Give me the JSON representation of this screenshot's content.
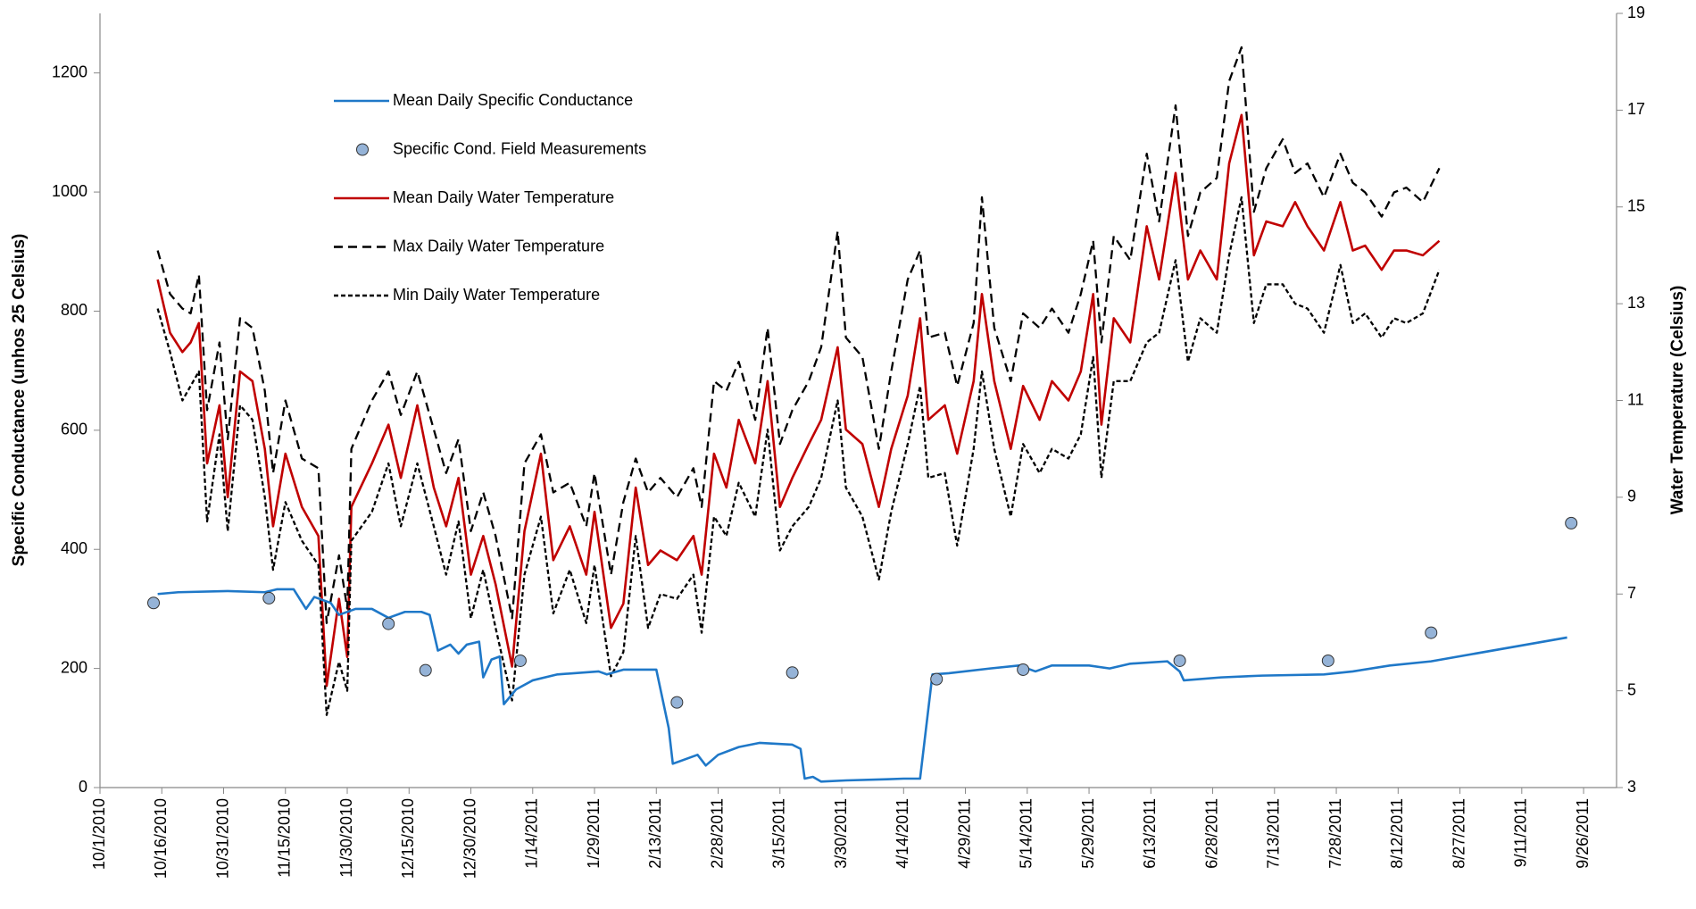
{
  "chart_data": {
    "type": "line",
    "y_label": "Specific Conductance (unhos 25 Celsius)",
    "y2_label": "Water Temperature (Celsius)",
    "xlim": [
      "2010-10-01",
      "2011-10-04"
    ],
    "xticks": [
      {
        "value": "2010-10-01",
        "label": "10/1/2010"
      },
      {
        "value": "2010-10-16",
        "label": "10/16/2010"
      },
      {
        "value": "2010-10-31",
        "label": "10/31/2010"
      },
      {
        "value": "2010-11-15",
        "label": "11/15/2010"
      },
      {
        "value": "2010-11-30",
        "label": "11/30/2010"
      },
      {
        "value": "2010-12-15",
        "label": "12/15/2010"
      },
      {
        "value": "2010-12-30",
        "label": "12/30/2010"
      },
      {
        "value": "2011-01-14",
        "label": "1/14/2011"
      },
      {
        "value": "2011-01-29",
        "label": "1/29/2011"
      },
      {
        "value": "2011-02-13",
        "label": "2/13/2011"
      },
      {
        "value": "2011-02-28",
        "label": "2/28/2011"
      },
      {
        "value": "2011-03-15",
        "label": "3/15/2011"
      },
      {
        "value": "2011-03-30",
        "label": "3/30/2011"
      },
      {
        "value": "2011-04-14",
        "label": "4/14/2011"
      },
      {
        "value": "2011-04-29",
        "label": "4/29/2011"
      },
      {
        "value": "2011-05-14",
        "label": "5/14/2011"
      },
      {
        "value": "2011-05-29",
        "label": "5/29/2011"
      },
      {
        "value": "2011-06-13",
        "label": "6/13/2011"
      },
      {
        "value": "2011-06-28",
        "label": "6/28/2011"
      },
      {
        "value": "2011-07-13",
        "label": "7/13/2011"
      },
      {
        "value": "2011-07-28",
        "label": "7/28/2011"
      },
      {
        "value": "2011-08-12",
        "label": "8/12/2011"
      },
      {
        "value": "2011-08-27",
        "label": "8/27/2011"
      },
      {
        "value": "2011-09-11",
        "label": "9/11/2011"
      },
      {
        "value": "2011-09-26",
        "label": "9/26/2011"
      }
    ],
    "ylim": [
      0,
      1300
    ],
    "yticks": [
      0,
      200,
      400,
      600,
      800,
      1000,
      1200
    ],
    "y2lim": [
      3,
      19
    ],
    "y2ticks": [
      3,
      5,
      7,
      9,
      11,
      13,
      15,
      17,
      19
    ],
    "grid": false,
    "legend": "upper left",
    "series": [
      {
        "name": "Mean Daily Specific Conductance",
        "color": "#1f78c8",
        "style": "solid",
        "x": [
          "2010-10-15",
          "2010-10-20",
          "2010-11-01",
          "2010-11-10",
          "2010-11-13",
          "2010-11-17",
          "2010-11-20",
          "2010-11-22",
          "2010-11-26",
          "2010-11-28",
          "2010-12-02",
          "2010-12-06",
          "2010-12-10",
          "2010-12-14",
          "2010-12-18",
          "2010-12-20",
          "2010-12-22",
          "2010-12-25",
          "2010-12-27",
          "2010-12-29",
          "2011-01-01",
          "2011-01-02",
          "2011-01-04",
          "2011-01-06",
          "2011-01-07",
          "2011-01-10",
          "2011-01-14",
          "2011-01-20",
          "2011-01-30",
          "2011-02-01",
          "2011-02-05",
          "2011-02-13",
          "2011-02-16",
          "2011-02-17",
          "2011-02-23",
          "2011-02-25",
          "2011-02-28",
          "2011-03-05",
          "2011-03-10",
          "2011-03-18",
          "2011-03-20",
          "2011-03-21",
          "2011-03-23",
          "2011-03-25",
          "2011-03-31",
          "2011-04-10",
          "2011-04-14",
          "2011-04-18",
          "2011-04-21",
          "2011-04-25",
          "2011-05-05",
          "2011-05-12",
          "2011-05-16",
          "2011-05-20",
          "2011-05-29",
          "2011-06-03",
          "2011-06-08",
          "2011-06-17",
          "2011-06-20",
          "2011-06-21",
          "2011-06-30",
          "2011-07-10",
          "2011-07-25",
          "2011-08-01",
          "2011-08-10",
          "2011-08-20",
          "2011-09-22"
        ],
        "values": [
          325,
          328,
          330,
          328,
          333,
          333,
          300,
          320,
          310,
          290,
          300,
          300,
          285,
          295,
          295,
          290,
          230,
          240,
          225,
          240,
          245,
          185,
          215,
          220,
          140,
          165,
          180,
          190,
          195,
          190,
          198,
          198,
          100,
          40,
          55,
          37,
          55,
          68,
          75,
          72,
          65,
          15,
          18,
          10,
          12,
          14,
          15,
          15,
          190,
          192,
          200,
          205,
          195,
          205,
          205,
          200,
          208,
          212,
          195,
          180,
          185,
          188,
          190,
          195,
          205,
          212,
          252
        ]
      },
      {
        "name": "Specific Cond. Field Measurements",
        "color": "#95b3d7",
        "style": "marker",
        "x": [
          "2010-10-14",
          "2010-11-11",
          "2010-12-10",
          "2010-12-19",
          "2011-01-11",
          "2011-02-18",
          "2011-03-18",
          "2011-04-22",
          "2011-05-13",
          "2011-06-20",
          "2011-07-26",
          "2011-08-20",
          "2011-09-23"
        ],
        "values": [
          310,
          318,
          275,
          197,
          213,
          143,
          193,
          182,
          198,
          213,
          213,
          260,
          444
        ]
      },
      {
        "name": "Mean Daily Water Temperature",
        "color": "#c00000",
        "style": "solid",
        "axis": "y2",
        "x": [
          "2010-10-15",
          "2010-10-18",
          "2010-10-21",
          "2010-10-23",
          "2010-10-25",
          "2010-10-27",
          "2010-10-30",
          "2010-11-01",
          "2010-11-04",
          "2010-11-07",
          "2010-11-10",
          "2010-11-12",
          "2010-11-15",
          "2010-11-19",
          "2010-11-23",
          "2010-11-25",
          "2010-11-28",
          "2010-11-30",
          "2010-12-01",
          "2010-12-06",
          "2010-12-10",
          "2010-12-13",
          "2010-12-17",
          "2010-12-21",
          "2010-12-24",
          "2010-12-27",
          "2010-12-30",
          "2011-01-02",
          "2011-01-05",
          "2011-01-09",
          "2011-01-12",
          "2011-01-16",
          "2011-01-19",
          "2011-01-23",
          "2011-01-27",
          "2011-01-29",
          "2011-02-02",
          "2011-02-05",
          "2011-02-08",
          "2011-02-11",
          "2011-02-14",
          "2011-02-18",
          "2011-02-22",
          "2011-02-24",
          "2011-02-27",
          "2011-03-02",
          "2011-03-05",
          "2011-03-09",
          "2011-03-12",
          "2011-03-15",
          "2011-03-18",
          "2011-03-22",
          "2011-03-25",
          "2011-03-29",
          "2011-03-31",
          "2011-04-04",
          "2011-04-08",
          "2011-04-11",
          "2011-04-15",
          "2011-04-18",
          "2011-04-20",
          "2011-04-24",
          "2011-04-27",
          "2011-05-01",
          "2011-05-03",
          "2011-05-06",
          "2011-05-10",
          "2011-05-13",
          "2011-05-17",
          "2011-05-20",
          "2011-05-24",
          "2011-05-27",
          "2011-05-30",
          "2011-06-01",
          "2011-06-04",
          "2011-06-08",
          "2011-06-12",
          "2011-06-15",
          "2011-06-19",
          "2011-06-22",
          "2011-06-25",
          "2011-06-29",
          "2011-07-02",
          "2011-07-05",
          "2011-07-08",
          "2011-07-11",
          "2011-07-15",
          "2011-07-18",
          "2011-07-21",
          "2011-07-25",
          "2011-07-29",
          "2011-08-01",
          "2011-08-04",
          "2011-08-08",
          "2011-08-11",
          "2011-08-14",
          "2011-08-18",
          "2011-08-22"
        ],
        "values": [
          13.5,
          12.4,
          12.0,
          12.2,
          12.6,
          9.7,
          10.9,
          9.0,
          11.6,
          11.4,
          10.0,
          8.4,
          9.9,
          8.8,
          8.2,
          5.1,
          6.9,
          5.7,
          8.8,
          9.7,
          10.5,
          9.4,
          10.9,
          9.2,
          8.4,
          9.4,
          7.4,
          8.2,
          7.2,
          5.5,
          8.3,
          9.9,
          7.7,
          8.4,
          7.4,
          8.7,
          6.3,
          6.8,
          9.2,
          7.6,
          7.9,
          7.7,
          8.2,
          7.4,
          9.9,
          9.2,
          10.6,
          9.7,
          11.4,
          8.8,
          9.4,
          10.1,
          10.6,
          12.1,
          10.4,
          10.1,
          8.8,
          10.0,
          11.1,
          12.7,
          10.6,
          10.9,
          9.9,
          11.4,
          13.2,
          11.4,
          10.0,
          11.3,
          10.6,
          11.4,
          11.0,
          11.6,
          13.2,
          10.5,
          12.7,
          12.2,
          14.6,
          13.5,
          15.7,
          13.5,
          14.1,
          13.5,
          15.9,
          16.9,
          14.0,
          14.7,
          14.6,
          15.1,
          14.6,
          14.1,
          15.1,
          14.1,
          14.2,
          13.7,
          14.1,
          14.1,
          14.0,
          14.3
        ]
      },
      {
        "name": "Max Daily Water Temperature",
        "color": "#000000",
        "style": "dashed",
        "axis": "y2",
        "x": [
          "2010-10-15",
          "2010-10-18",
          "2010-10-21",
          "2010-10-23",
          "2010-10-25",
          "2010-10-27",
          "2010-10-30",
          "2010-11-01",
          "2010-11-04",
          "2010-11-07",
          "2010-11-10",
          "2010-11-12",
          "2010-11-15",
          "2010-11-19",
          "2010-11-23",
          "2010-11-25",
          "2010-11-28",
          "2010-11-30",
          "2010-12-01",
          "2010-12-06",
          "2010-12-10",
          "2010-12-13",
          "2010-12-17",
          "2010-12-21",
          "2010-12-24",
          "2010-12-27",
          "2010-12-30",
          "2011-01-02",
          "2011-01-05",
          "2011-01-09",
          "2011-01-12",
          "2011-01-16",
          "2011-01-19",
          "2011-01-23",
          "2011-01-27",
          "2011-01-29",
          "2011-02-02",
          "2011-02-05",
          "2011-02-08",
          "2011-02-11",
          "2011-02-14",
          "2011-02-18",
          "2011-02-22",
          "2011-02-24",
          "2011-02-27",
          "2011-03-02",
          "2011-03-05",
          "2011-03-09",
          "2011-03-12",
          "2011-03-15",
          "2011-03-18",
          "2011-03-22",
          "2011-03-25",
          "2011-03-29",
          "2011-03-31",
          "2011-04-04",
          "2011-04-08",
          "2011-04-11",
          "2011-04-15",
          "2011-04-18",
          "2011-04-20",
          "2011-04-24",
          "2011-04-27",
          "2011-05-01",
          "2011-05-03",
          "2011-05-06",
          "2011-05-10",
          "2011-05-13",
          "2011-05-17",
          "2011-05-20",
          "2011-05-24",
          "2011-05-27",
          "2011-05-30",
          "2011-06-01",
          "2011-06-04",
          "2011-06-08",
          "2011-06-12",
          "2011-06-15",
          "2011-06-19",
          "2011-06-22",
          "2011-06-25",
          "2011-06-29",
          "2011-07-02",
          "2011-07-05",
          "2011-07-08",
          "2011-07-11",
          "2011-07-15",
          "2011-07-18",
          "2011-07-21",
          "2011-07-25",
          "2011-07-29",
          "2011-08-01",
          "2011-08-04",
          "2011-08-08",
          "2011-08-11",
          "2011-08-14",
          "2011-08-18",
          "2011-08-22"
        ],
        "values": [
          14.1,
          13.2,
          12.9,
          12.8,
          13.6,
          10.8,
          12.2,
          10.2,
          12.7,
          12.5,
          11.2,
          9.5,
          11.0,
          9.8,
          9.6,
          6.4,
          7.8,
          6.7,
          10.0,
          11.0,
          11.6,
          10.7,
          11.6,
          10.4,
          9.5,
          10.2,
          8.3,
          9.1,
          8.2,
          6.5,
          9.7,
          10.3,
          9.1,
          9.3,
          8.4,
          9.5,
          7.4,
          8.9,
          9.8,
          9.1,
          9.4,
          9.0,
          9.6,
          8.8,
          11.4,
          11.2,
          11.8,
          10.6,
          12.5,
          10.1,
          10.8,
          11.4,
          12.1,
          14.5,
          12.3,
          11.9,
          10.0,
          11.6,
          13.5,
          14.1,
          12.3,
          12.4,
          11.3,
          12.6,
          15.2,
          12.5,
          11.4,
          12.8,
          12.5,
          12.9,
          12.4,
          13.2,
          14.3,
          12.2,
          14.4,
          13.9,
          16.1,
          14.7,
          17.1,
          14.4,
          15.3,
          15.6,
          17.6,
          18.3,
          14.9,
          15.8,
          16.4,
          15.7,
          15.9,
          15.2,
          16.1,
          15.5,
          15.3,
          14.8,
          15.3,
          15.4,
          15.1,
          15.8
        ]
      },
      {
        "name": "Min Daily Water Temperature",
        "color": "#000000",
        "style": "dotted",
        "axis": "y2",
        "x": [
          "2010-10-15",
          "2010-10-18",
          "2010-10-21",
          "2010-10-23",
          "2010-10-25",
          "2010-10-27",
          "2010-10-30",
          "2010-11-01",
          "2010-11-04",
          "2010-11-07",
          "2010-11-10",
          "2010-11-12",
          "2010-11-15",
          "2010-11-19",
          "2010-11-23",
          "2010-11-25",
          "2010-11-28",
          "2010-11-30",
          "2010-12-01",
          "2010-12-06",
          "2010-12-10",
          "2010-12-13",
          "2010-12-17",
          "2010-12-21",
          "2010-12-24",
          "2010-12-27",
          "2010-12-30",
          "2011-01-02",
          "2011-01-05",
          "2011-01-09",
          "2011-01-12",
          "2011-01-16",
          "2011-01-19",
          "2011-01-23",
          "2011-01-27",
          "2011-01-29",
          "2011-02-02",
          "2011-02-05",
          "2011-02-08",
          "2011-02-11",
          "2011-02-14",
          "2011-02-18",
          "2011-02-22",
          "2011-02-24",
          "2011-02-27",
          "2011-03-02",
          "2011-03-05",
          "2011-03-09",
          "2011-03-12",
          "2011-03-15",
          "2011-03-18",
          "2011-03-22",
          "2011-03-25",
          "2011-03-29",
          "2011-03-31",
          "2011-04-04",
          "2011-04-08",
          "2011-04-11",
          "2011-04-15",
          "2011-04-18",
          "2011-04-20",
          "2011-04-24",
          "2011-04-27",
          "2011-05-01",
          "2011-05-03",
          "2011-05-06",
          "2011-05-10",
          "2011-05-13",
          "2011-05-17",
          "2011-05-20",
          "2011-05-24",
          "2011-05-27",
          "2011-05-30",
          "2011-06-01",
          "2011-06-04",
          "2011-06-08",
          "2011-06-12",
          "2011-06-15",
          "2011-06-19",
          "2011-06-22",
          "2011-06-25",
          "2011-06-29",
          "2011-07-02",
          "2011-07-05",
          "2011-07-08",
          "2011-07-11",
          "2011-07-15",
          "2011-07-18",
          "2011-07-21",
          "2011-07-25",
          "2011-07-29",
          "2011-08-01",
          "2011-08-04",
          "2011-08-08",
          "2011-08-11",
          "2011-08-14",
          "2011-08-18",
          "2011-08-22"
        ],
        "values": [
          12.9,
          12.0,
          11.0,
          11.3,
          11.6,
          8.5,
          10.3,
          8.3,
          10.9,
          10.6,
          9.0,
          7.5,
          8.9,
          8.1,
          7.6,
          4.5,
          5.6,
          5.0,
          8.1,
          8.7,
          9.7,
          8.4,
          9.7,
          8.4,
          7.4,
          8.5,
          6.5,
          7.5,
          6.3,
          4.8,
          7.4,
          8.6,
          6.6,
          7.5,
          6.4,
          7.6,
          5.3,
          5.8,
          8.2,
          6.3,
          7.0,
          6.9,
          7.4,
          6.2,
          8.6,
          8.2,
          9.3,
          8.6,
          10.4,
          7.9,
          8.4,
          8.8,
          9.4,
          11.0,
          9.2,
          8.6,
          7.3,
          8.7,
          10.1,
          11.3,
          9.4,
          9.5,
          8.0,
          10.0,
          11.6,
          10.0,
          8.6,
          10.1,
          9.5,
          10.0,
          9.8,
          10.3,
          11.9,
          9.4,
          11.4,
          11.4,
          12.2,
          12.4,
          13.9,
          11.8,
          12.7,
          12.4,
          14.0,
          15.2,
          12.6,
          13.4,
          13.4,
          13.0,
          12.9,
          12.4,
          13.8,
          12.6,
          12.8,
          12.3,
          12.7,
          12.6,
          12.8,
          13.7
        ]
      }
    ]
  }
}
